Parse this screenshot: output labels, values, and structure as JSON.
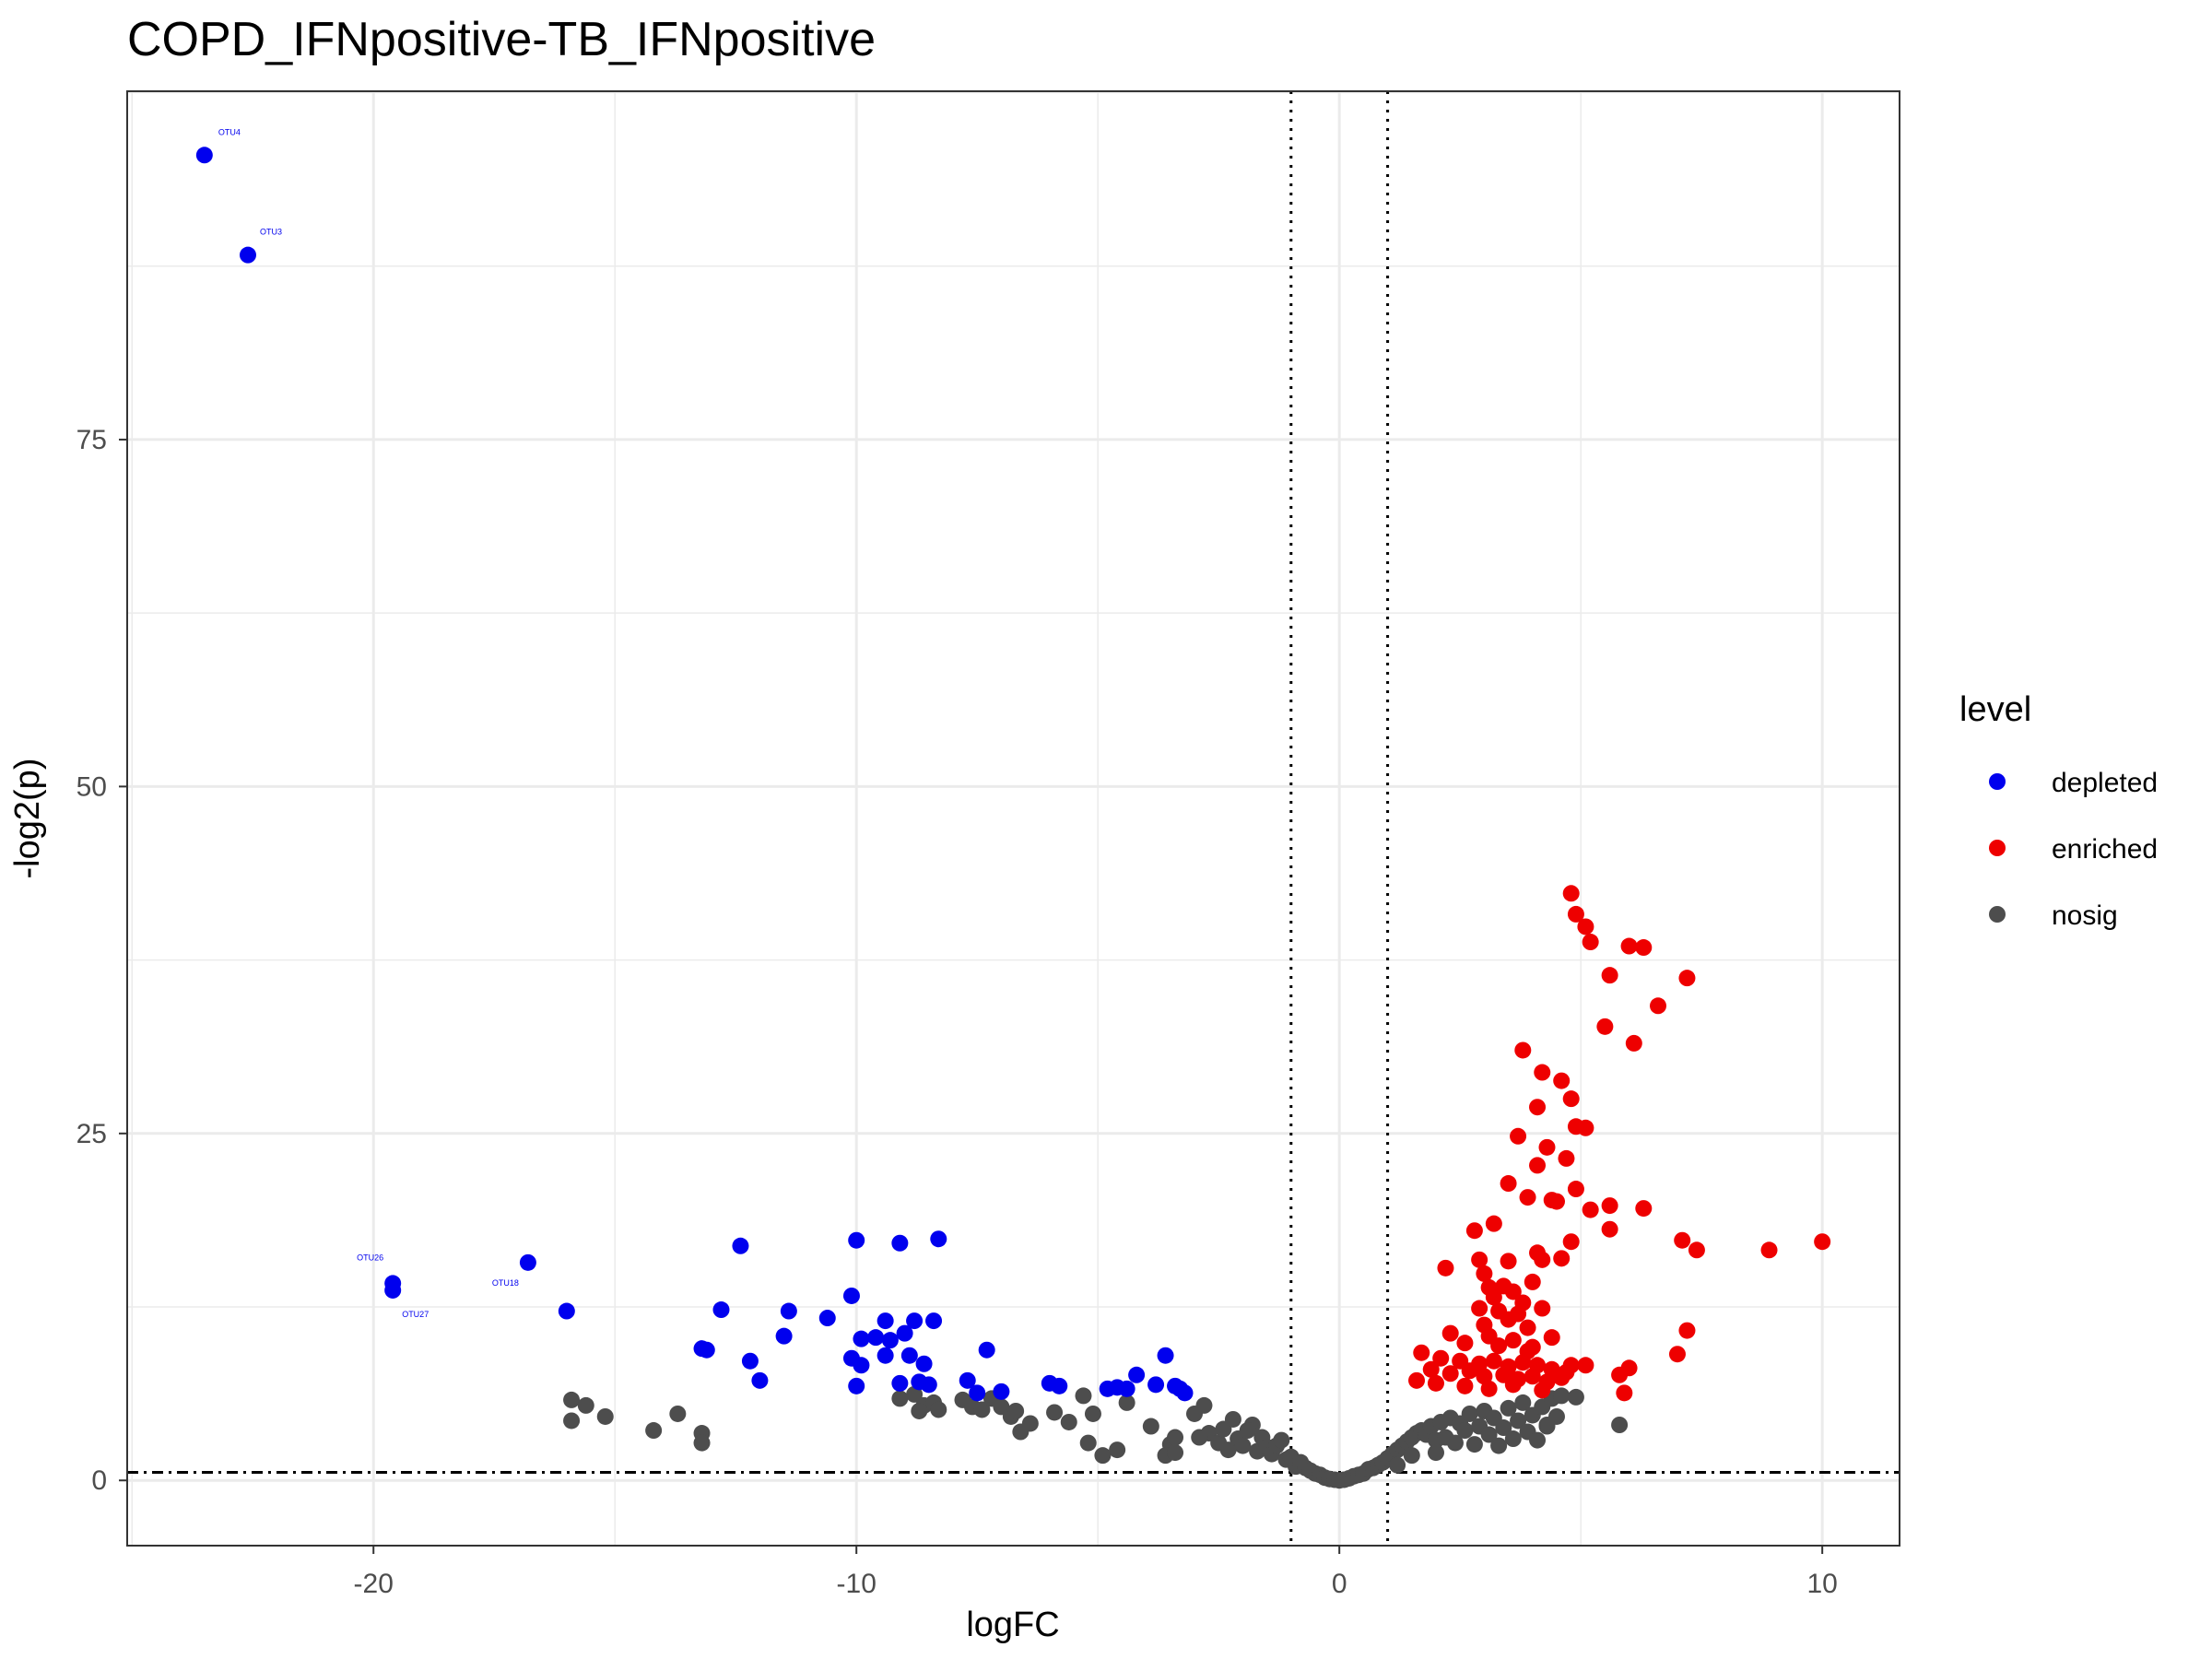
{
  "chart_data": {
    "type": "scatter",
    "title": "COPD_IFNpositive-TB_IFNpositive",
    "xlabel": "logFC",
    "ylabel": "-log2(p)",
    "xlim": [
      -25.1,
      11.6
    ],
    "ylim": [
      -4.7,
      100.1
    ],
    "x_ticks": [
      -20,
      -10,
      0,
      10
    ],
    "y_ticks": [
      0,
      25,
      50,
      75
    ],
    "grid": true,
    "legend": {
      "title": "level",
      "position": "right"
    },
    "reference_lines": {
      "vertical_dotted": [
        -1,
        1
      ],
      "horizontal_dotdash": 0.58
    },
    "colors": {
      "depleted": "#0000ee",
      "enriched": "#ee0000",
      "nosig": "#4d4d4d"
    },
    "series": [
      {
        "name": "depleted",
        "points": [
          [
            -23.5,
            95.5
          ],
          [
            -22.6,
            88.3
          ],
          [
            -19.6,
            14.2
          ],
          [
            -19.6,
            13.7
          ],
          [
            -16.8,
            15.7
          ],
          [
            -16.0,
            12.2
          ],
          [
            -12.4,
            16.9
          ],
          [
            -12.2,
            8.6
          ],
          [
            -12.0,
            7.2
          ],
          [
            -12.8,
            12.3
          ],
          [
            -13.2,
            9.5
          ],
          [
            -13.1,
            9.4
          ],
          [
            -11.4,
            12.2
          ],
          [
            -11.5,
            10.4
          ],
          [
            -10.6,
            11.7
          ],
          [
            -10.1,
            13.3
          ],
          [
            -10.1,
            8.8
          ],
          [
            -10.0,
            17.3
          ],
          [
            -9.9,
            8.3
          ],
          [
            -10.0,
            6.8
          ],
          [
            -9.9,
            10.2
          ],
          [
            -9.6,
            10.3
          ],
          [
            -9.4,
            11.5
          ],
          [
            -9.4,
            9.0
          ],
          [
            -9.3,
            10.1
          ],
          [
            -9.1,
            17.1
          ],
          [
            -9.0,
            10.6
          ],
          [
            -8.9,
            9.0
          ],
          [
            -8.8,
            11.5
          ],
          [
            -9.1,
            7.0
          ],
          [
            -8.7,
            7.1
          ],
          [
            -8.6,
            8.4
          ],
          [
            -8.5,
            6.9
          ],
          [
            -8.4,
            11.5
          ],
          [
            -8.3,
            17.4
          ],
          [
            -7.7,
            7.2
          ],
          [
            -7.5,
            6.3
          ],
          [
            -7.3,
            9.4
          ],
          [
            -7.0,
            6.4
          ],
          [
            -6.0,
            7.0
          ],
          [
            -5.8,
            6.8
          ],
          [
            -4.8,
            6.6
          ],
          [
            -4.6,
            6.7
          ],
          [
            -4.4,
            6.6
          ],
          [
            -4.2,
            7.6
          ],
          [
            -3.8,
            6.9
          ],
          [
            -3.6,
            9.0
          ],
          [
            -3.4,
            6.8
          ],
          [
            -3.3,
            6.6
          ],
          [
            -3.2,
            6.3
          ]
        ]
      },
      {
        "name": "enriched",
        "points": [
          [
            4.8,
            42.3
          ],
          [
            4.9,
            40.8
          ],
          [
            5.1,
            39.9
          ],
          [
            5.2,
            38.8
          ],
          [
            6.0,
            38.5
          ],
          [
            6.3,
            38.4
          ],
          [
            5.6,
            36.4
          ],
          [
            7.2,
            36.2
          ],
          [
            6.6,
            34.2
          ],
          [
            5.5,
            32.7
          ],
          [
            6.1,
            31.5
          ],
          [
            3.8,
            31.0
          ],
          [
            4.2,
            29.4
          ],
          [
            4.6,
            28.8
          ],
          [
            4.8,
            27.5
          ],
          [
            4.1,
            26.9
          ],
          [
            4.9,
            25.5
          ],
          [
            5.1,
            25.4
          ],
          [
            3.7,
            24.8
          ],
          [
            4.3,
            24.0
          ],
          [
            4.7,
            23.2
          ],
          [
            4.1,
            22.7
          ],
          [
            3.5,
            21.4
          ],
          [
            4.9,
            21.0
          ],
          [
            4.4,
            20.2
          ],
          [
            4.5,
            20.1
          ],
          [
            3.9,
            20.4
          ],
          [
            5.6,
            19.8
          ],
          [
            6.3,
            19.6
          ],
          [
            5.2,
            19.5
          ],
          [
            3.2,
            18.5
          ],
          [
            5.6,
            18.1
          ],
          [
            2.8,
            18.0
          ],
          [
            7.1,
            17.3
          ],
          [
            10.0,
            17.2
          ],
          [
            7.4,
            16.6
          ],
          [
            8.9,
            16.6
          ],
          [
            4.8,
            17.2
          ],
          [
            4.1,
            16.4
          ],
          [
            4.6,
            16.0
          ],
          [
            4.2,
            15.9
          ],
          [
            3.5,
            15.8
          ],
          [
            2.2,
            15.3
          ],
          [
            2.9,
            15.9
          ],
          [
            3.0,
            14.9
          ],
          [
            4.0,
            14.3
          ],
          [
            3.1,
            13.9
          ],
          [
            3.4,
            14.0
          ],
          [
            3.6,
            13.6
          ],
          [
            3.2,
            13.2
          ],
          [
            3.8,
            12.8
          ],
          [
            2.9,
            12.4
          ],
          [
            3.3,
            12.2
          ],
          [
            3.7,
            12.0
          ],
          [
            4.2,
            12.4
          ],
          [
            3.5,
            11.6
          ],
          [
            3.0,
            11.2
          ],
          [
            3.9,
            11.0
          ],
          [
            2.3,
            10.6
          ],
          [
            3.1,
            10.4
          ],
          [
            3.6,
            10.1
          ],
          [
            4.4,
            10.3
          ],
          [
            7.2,
            10.8
          ],
          [
            2.6,
            9.9
          ],
          [
            3.3,
            9.7
          ],
          [
            4.0,
            9.6
          ],
          [
            7.0,
            9.1
          ],
          [
            1.7,
            9.2
          ],
          [
            2.1,
            8.8
          ],
          [
            2.5,
            8.6
          ],
          [
            2.9,
            8.4
          ],
          [
            3.2,
            8.6
          ],
          [
            3.5,
            8.2
          ],
          [
            3.8,
            8.5
          ],
          [
            4.1,
            8.3
          ],
          [
            4.4,
            8.0
          ],
          [
            4.8,
            8.3
          ],
          [
            5.1,
            8.3
          ],
          [
            6.0,
            8.1
          ],
          [
            1.9,
            8.0
          ],
          [
            2.3,
            7.7
          ],
          [
            2.7,
            7.9
          ],
          [
            3.0,
            7.5
          ],
          [
            3.4,
            7.6
          ],
          [
            3.7,
            7.3
          ],
          [
            4.0,
            7.5
          ],
          [
            4.3,
            7.1
          ],
          [
            4.6,
            7.4
          ],
          [
            5.8,
            7.6
          ],
          [
            1.6,
            7.2
          ],
          [
            2.0,
            7.0
          ],
          [
            2.6,
            6.8
          ],
          [
            3.1,
            6.6
          ],
          [
            3.6,
            6.9
          ],
          [
            4.2,
            6.5
          ],
          [
            5.9,
            6.3
          ],
          [
            4.7,
            7.8
          ],
          [
            3.9,
            9.3
          ]
        ]
      },
      {
        "name": "nosig",
        "points": [
          [
            -15.9,
            5.8
          ],
          [
            -15.6,
            5.4
          ],
          [
            -15.9,
            4.3
          ],
          [
            -15.2,
            4.6
          ],
          [
            -14.2,
            3.6
          ],
          [
            -13.7,
            4.8
          ],
          [
            -13.2,
            3.4
          ],
          [
            -13.2,
            2.7
          ],
          [
            -9.1,
            5.9
          ],
          [
            -8.8,
            6.2
          ],
          [
            -8.6,
            5.4
          ],
          [
            -8.7,
            5.0
          ],
          [
            -8.4,
            5.6
          ],
          [
            -8.3,
            5.1
          ],
          [
            -7.8,
            5.8
          ],
          [
            -7.6,
            5.3
          ],
          [
            -7.4,
            5.1
          ],
          [
            -7.2,
            5.9
          ],
          [
            -7.0,
            5.3
          ],
          [
            -6.8,
            4.6
          ],
          [
            -6.7,
            5.0
          ],
          [
            -6.6,
            3.5
          ],
          [
            -6.4,
            4.1
          ],
          [
            -5.9,
            4.9
          ],
          [
            -5.6,
            4.2
          ],
          [
            -5.3,
            6.1
          ],
          [
            -5.1,
            4.8
          ],
          [
            -5.2,
            2.7
          ],
          [
            -4.9,
            1.8
          ],
          [
            -4.6,
            2.2
          ],
          [
            -4.4,
            5.6
          ],
          [
            -3.9,
            3.9
          ],
          [
            -3.5,
            2.6
          ],
          [
            -3.4,
            3.1
          ],
          [
            -3.6,
            1.8
          ],
          [
            -3.4,
            2.0
          ],
          [
            -3.0,
            4.8
          ],
          [
            -2.8,
            5.4
          ],
          [
            -2.7,
            3.4
          ],
          [
            -2.5,
            2.7
          ],
          [
            -2.4,
            3.7
          ],
          [
            -2.3,
            2.2
          ],
          [
            -2.2,
            4.4
          ],
          [
            -2.1,
            3.0
          ],
          [
            -2.0,
            2.5
          ],
          [
            -1.8,
            4.0
          ],
          [
            -1.7,
            2.1
          ],
          [
            -1.6,
            3.1
          ],
          [
            -1.5,
            2.4
          ],
          [
            -1.4,
            1.9
          ],
          [
            -1.3,
            2.5
          ],
          [
            -1.2,
            2.9
          ],
          [
            -1.1,
            1.5
          ],
          [
            -1.0,
            1.7
          ],
          [
            -0.9,
            1.0
          ],
          [
            -0.8,
            1.3
          ],
          [
            -0.7,
            0.9
          ],
          [
            -0.6,
            0.7
          ],
          [
            -0.5,
            0.5
          ],
          [
            -0.4,
            0.4
          ],
          [
            -0.3,
            0.2
          ],
          [
            -0.2,
            0.1
          ],
          [
            -0.1,
            0.05
          ],
          [
            0.0,
            0.0
          ],
          [
            0.1,
            0.05
          ],
          [
            0.2,
            0.15
          ],
          [
            0.3,
            0.3
          ],
          [
            0.4,
            0.4
          ],
          [
            0.5,
            0.5
          ],
          [
            0.6,
            0.8
          ],
          [
            0.7,
            0.9
          ],
          [
            0.8,
            1.1
          ],
          [
            0.9,
            1.3
          ],
          [
            1.0,
            1.6
          ],
          [
            1.1,
            1.9
          ],
          [
            1.2,
            2.2
          ],
          [
            1.3,
            2.5
          ],
          [
            1.4,
            2.8
          ],
          [
            1.5,
            3.1
          ],
          [
            1.6,
            3.4
          ],
          [
            1.7,
            3.6
          ],
          [
            1.8,
            3.3
          ],
          [
            1.9,
            3.9
          ],
          [
            2.0,
            2.9
          ],
          [
            2.1,
            4.2
          ],
          [
            2.2,
            3.1
          ],
          [
            2.3,
            4.5
          ],
          [
            2.4,
            2.7
          ],
          [
            2.5,
            4.1
          ],
          [
            2.6,
            3.6
          ],
          [
            2.7,
            4.8
          ],
          [
            2.8,
            2.6
          ],
          [
            2.9,
            3.9
          ],
          [
            3.0,
            5.0
          ],
          [
            3.1,
            3.3
          ],
          [
            3.2,
            4.5
          ],
          [
            3.3,
            2.5
          ],
          [
            3.4,
            3.8
          ],
          [
            3.5,
            5.2
          ],
          [
            3.6,
            3.0
          ],
          [
            3.7,
            4.3
          ],
          [
            3.8,
            5.6
          ],
          [
            3.9,
            3.5
          ],
          [
            4.0,
            4.7
          ],
          [
            4.1,
            2.9
          ],
          [
            4.2,
            5.3
          ],
          [
            4.3,
            3.9
          ],
          [
            4.4,
            5.9
          ],
          [
            4.5,
            4.6
          ],
          [
            4.6,
            6.1
          ],
          [
            4.9,
            6.0
          ],
          [
            4.3,
            4.0
          ],
          [
            5.8,
            4.0
          ],
          [
            2.0,
            2.0
          ],
          [
            1.5,
            1.8
          ],
          [
            1.2,
            1.1
          ],
          [
            -1.9,
            3.6
          ],
          [
            -2.9,
            3.1
          ]
        ]
      }
    ],
    "annotations": [
      {
        "text": "OTU4",
        "x": -23.5,
        "y": 95.5,
        "series": "depleted"
      },
      {
        "text": "OTU3",
        "x": -22.6,
        "y": 88.3,
        "series": "depleted"
      },
      {
        "text": "OTU26",
        "x": -19.6,
        "y": 14.2,
        "series": "depleted"
      },
      {
        "text": "OTU27",
        "x": -19.6,
        "y": 13.7,
        "series": "depleted"
      },
      {
        "text": "OTU18",
        "x": -16.8,
        "y": 15.7,
        "series": "depleted"
      }
    ]
  }
}
